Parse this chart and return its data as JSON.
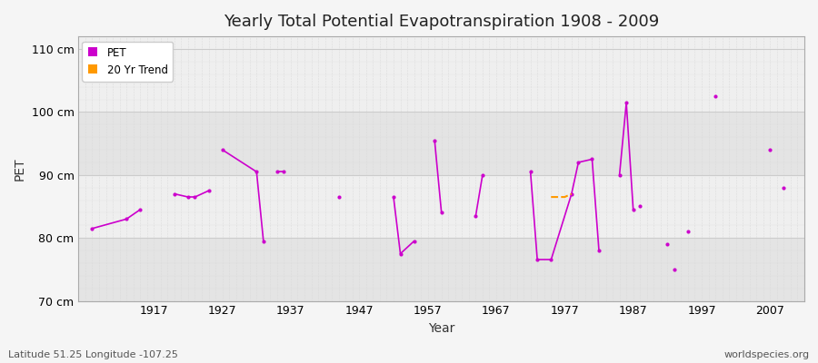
{
  "title": "Yearly Total Potential Evapotranspiration 1908 - 2009",
  "xlabel": "Year",
  "ylabel": "PET",
  "subtitle_lat": "Latitude 51.25 Longitude -107.25",
  "watermark": "worldspecies.org",
  "ylim": [
    70,
    112
  ],
  "xlim": [
    1906,
    2012
  ],
  "yticks": [
    70,
    80,
    90,
    100,
    110
  ],
  "ytick_labels": [
    "70 cm",
    "80 cm",
    "90 cm",
    "100 cm",
    "110 cm"
  ],
  "xticks": [
    1917,
    1927,
    1937,
    1947,
    1957,
    1967,
    1977,
    1987,
    1997,
    2007
  ],
  "pet_color": "#cc00cc",
  "trend_color": "#ff9900",
  "bg_color": "#f5f5f5",
  "band_light": "#efefef",
  "band_dark": "#e4e4e4",
  "grid_minor_color": "#d8d8d8",
  "grid_major_color": "#cccccc",
  "pet_segments": [
    [
      [
        1908,
        81.5
      ],
      [
        1913,
        83.0
      ]
    ],
    [
      [
        1913,
        83.0
      ],
      [
        1915,
        84.5
      ]
    ],
    [
      [
        1920,
        87.0
      ],
      [
        1922,
        86.5
      ]
    ],
    [
      [
        1922,
        86.5
      ],
      [
        1923,
        86.5
      ]
    ],
    [
      [
        1923,
        86.5
      ],
      [
        1925,
        87.5
      ]
    ],
    [
      [
        1927,
        94.0
      ],
      [
        1932,
        90.5
      ]
    ],
    [
      [
        1932,
        90.5
      ],
      [
        1933,
        79.5
      ]
    ],
    [
      [
        1935,
        90.5
      ],
      [
        1936,
        90.5
      ]
    ],
    [
      [
        1952,
        86.5
      ],
      [
        1953,
        77.5
      ]
    ],
    [
      [
        1953,
        77.5
      ],
      [
        1955,
        79.5
      ]
    ],
    [
      [
        1958,
        95.5
      ],
      [
        1959,
        84.0
      ]
    ],
    [
      [
        1964,
        83.5
      ],
      [
        1965,
        90.0
      ]
    ],
    [
      [
        1972,
        90.5
      ],
      [
        1973,
        76.5
      ]
    ],
    [
      [
        1973,
        76.5
      ],
      [
        1975,
        76.5
      ]
    ],
    [
      [
        1975,
        76.5
      ],
      [
        1978,
        87.0
      ]
    ],
    [
      [
        1978,
        87.0
      ],
      [
        1979,
        92.0
      ]
    ],
    [
      [
        1979,
        92.0
      ],
      [
        1981,
        92.5
      ]
    ],
    [
      [
        1981,
        92.5
      ],
      [
        1982,
        78.0
      ]
    ],
    [
      [
        1985,
        90.0
      ],
      [
        1986,
        101.5
      ]
    ],
    [
      [
        1986,
        101.5
      ],
      [
        1987,
        84.5
      ]
    ]
  ],
  "pet_points": [
    [
      1908,
      81.5
    ],
    [
      1913,
      83.0
    ],
    [
      1915,
      84.5
    ],
    [
      1920,
      87.0
    ],
    [
      1922,
      86.5
    ],
    [
      1923,
      86.5
    ],
    [
      1925,
      87.5
    ],
    [
      1927,
      94.0
    ],
    [
      1932,
      90.5
    ],
    [
      1933,
      79.5
    ],
    [
      1935,
      90.5
    ],
    [
      1936,
      90.5
    ],
    [
      1944,
      86.5
    ],
    [
      1952,
      86.5
    ],
    [
      1953,
      77.5
    ],
    [
      1955,
      79.5
    ],
    [
      1958,
      95.5
    ],
    [
      1959,
      84.0
    ],
    [
      1964,
      83.5
    ],
    [
      1965,
      90.0
    ],
    [
      1972,
      90.5
    ],
    [
      1973,
      76.5
    ],
    [
      1975,
      76.5
    ],
    [
      1978,
      87.0
    ],
    [
      1979,
      92.0
    ],
    [
      1981,
      92.5
    ],
    [
      1982,
      78.0
    ],
    [
      1985,
      90.0
    ],
    [
      1986,
      101.5
    ],
    [
      1987,
      84.5
    ],
    [
      1988,
      85.0
    ],
    [
      1992,
      79.0
    ],
    [
      1993,
      75.0
    ],
    [
      1995,
      81.0
    ],
    [
      1999,
      102.5
    ],
    [
      2007,
      94.0
    ],
    [
      2009,
      88.0
    ]
  ],
  "trend_points": [
    [
      1975,
      86.5
    ],
    [
      1976,
      86.5
    ],
    [
      1977,
      86.5
    ],
    [
      1978,
      87.0
    ]
  ]
}
